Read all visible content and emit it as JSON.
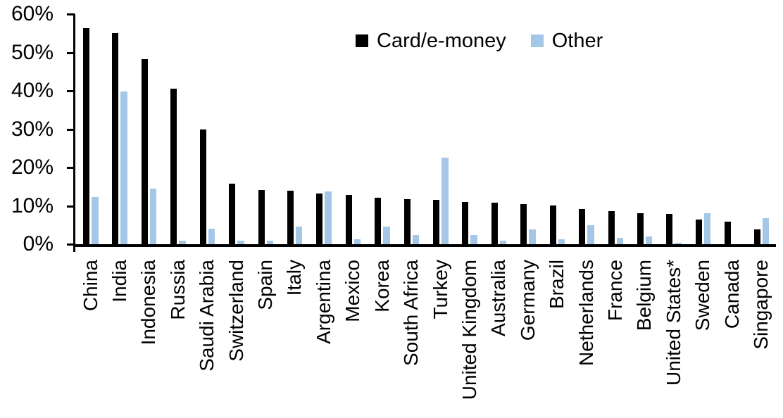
{
  "chart_data": {
    "type": "bar",
    "title": "",
    "categories": [
      "China",
      "India",
      "Indonesia",
      "Russia",
      "Saudi Arabia",
      "Switzerland",
      "Spain",
      "Italy",
      "Argentina",
      "Mexico",
      "Korea",
      "South Africa",
      "Turkey",
      "United Kingdom",
      "Australia",
      "Germany",
      "Brazil",
      "Netherlands",
      "France",
      "Belgium",
      "United States*",
      "Sweden",
      "Canada",
      "Singapore"
    ],
    "series": [
      {
        "name": "Card/e-money",
        "color": "#000000",
        "values": [
          56.3,
          55.0,
          48.3,
          40.5,
          29.9,
          15.7,
          14.1,
          13.9,
          13.3,
          12.8,
          12.2,
          11.7,
          11.6,
          11.0,
          10.8,
          10.5,
          10.1,
          9.2,
          8.6,
          8.1,
          7.8,
          6.5,
          5.9,
          3.9
        ]
      },
      {
        "name": "Other",
        "color": "#a4c7e8",
        "values": [
          12.3,
          39.8,
          14.5,
          1.0,
          4.0,
          0.9,
          1.0,
          4.6,
          13.8,
          1.3,
          4.5,
          2.4,
          22.6,
          2.4,
          1.0,
          3.9,
          1.3,
          4.9,
          1.7,
          2.0,
          0.3,
          8.1,
          0,
          6.7
        ]
      }
    ],
    "ylim": [
      0,
      60
    ],
    "ytick_values": [
      0,
      10,
      20,
      30,
      40,
      50,
      60
    ],
    "yticks": [
      "0%",
      "10%",
      "20%",
      "30%",
      "40%",
      "50%",
      "60%"
    ],
    "xlabel": "",
    "ylabel": "",
    "grid": "off",
    "legend_position": "top-center",
    "axis_color": "#000000",
    "background_color": "#ffffff"
  }
}
